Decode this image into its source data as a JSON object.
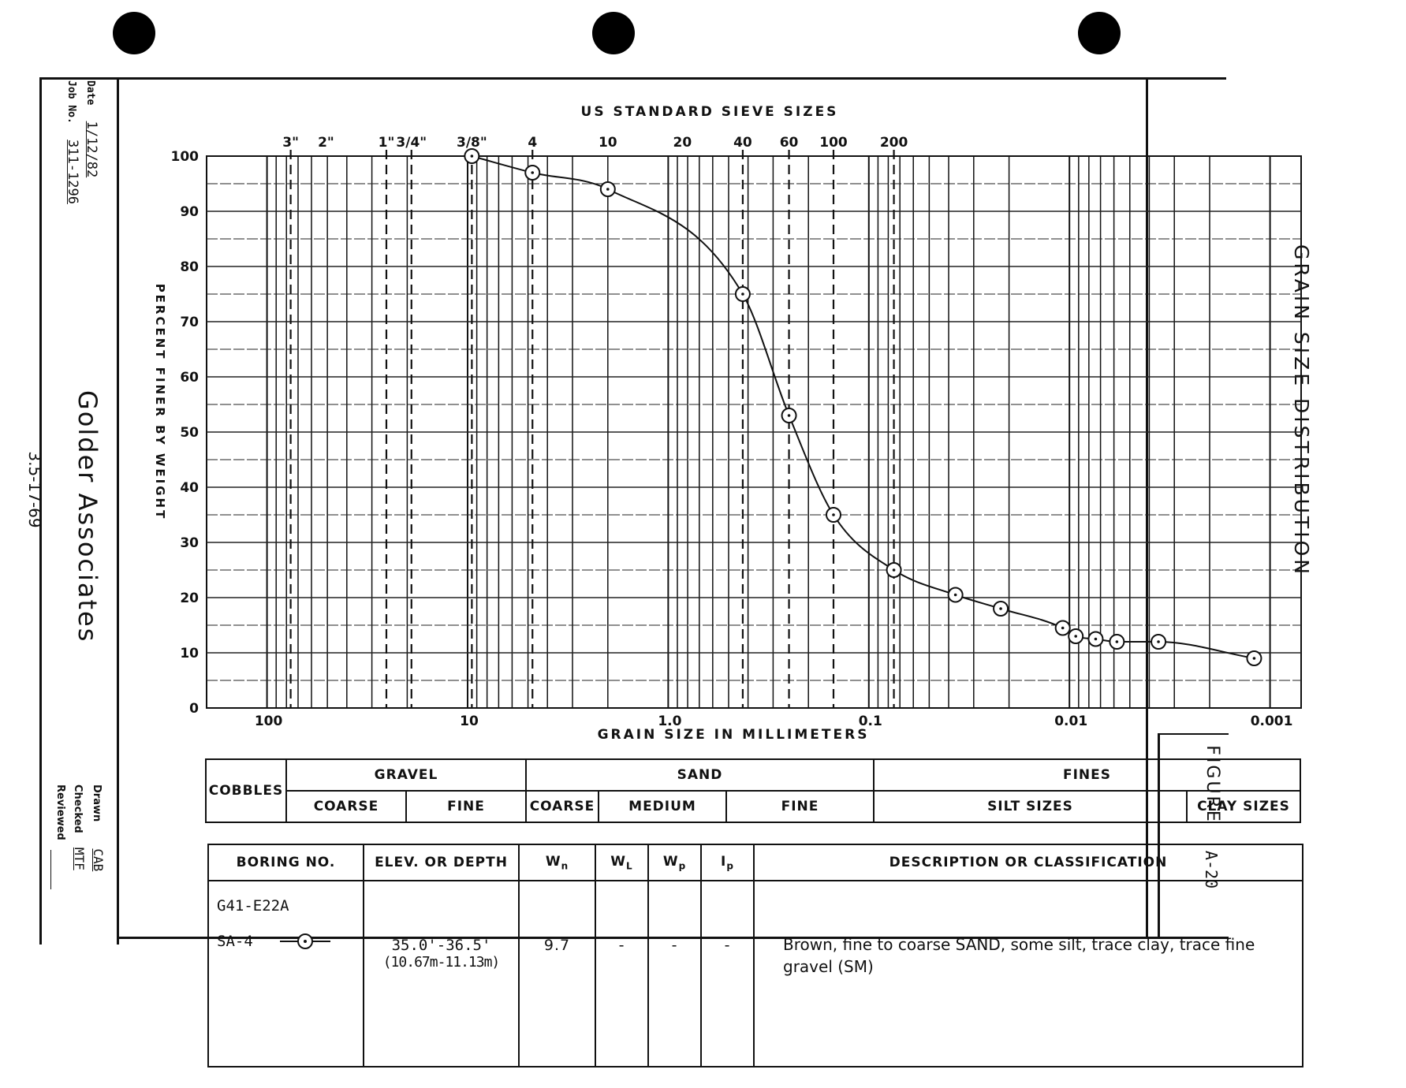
{
  "sheet": {
    "title": "GRAIN SIZE DISTRIBUTION",
    "figure_label": "FIGURE",
    "figure_number": "A-20",
    "page_ref": "3.5-17-69",
    "company": "Golder Associates",
    "date_label": "Date",
    "date_value": "1/12/82",
    "job_label": "Job No.",
    "job_value": "311-1296",
    "drawn_label": "Drawn",
    "drawn_value": "CAB",
    "checked_label": "Checked",
    "checked_value": "MTF",
    "reviewed_label": "Reviewed"
  },
  "classification": {
    "cobbles": "COBBLES",
    "gravel": "GRAVEL",
    "gravel_coarse": "COARSE",
    "gravel_fine": "FINE",
    "sand": "SAND",
    "sand_coarse": "COARSE",
    "sand_medium": "MEDIUM",
    "sand_fine": "FINE",
    "fines": "FINES",
    "silt": "SILT  SIZES",
    "clay": "CLAY SIZES"
  },
  "results": {
    "headers": {
      "boring": "BORING NO.",
      "elev": "ELEV. OR DEPTH",
      "wn": "W",
      "wn_sub": "n",
      "wl": "W",
      "wl_sub": "L",
      "wp": "W",
      "wp_sub": "p",
      "ip": "I",
      "ip_sub": "p",
      "desc": "DESCRIPTION   OR   CLASSIFICATION"
    },
    "row": {
      "boring_no": "G41-E22A",
      "sample": "SA-4",
      "elev_ft": "35.0'-36.5'",
      "elev_m": "(10.67m-11.13m)",
      "wn": "9.7",
      "wl": "-",
      "wp": "-",
      "ip": "-",
      "description": "Brown, fine to coarse SAND, some silt, trace clay, trace fine gravel  (SM)"
    }
  },
  "chart_data": {
    "type": "line",
    "title": "US STANDARD SIEVE SIZES",
    "xlabel": "GRAIN SIZE IN MILLIMETERS",
    "ylabel": "PERCENT FINER BY WEIGHT",
    "x_scale": "log",
    "x_reversed": true,
    "xlim": [
      200,
      0.0007
    ],
    "ylim": [
      0,
      100
    ],
    "x_tick_labels": [
      "100",
      "10",
      "1.0",
      "0.1",
      "0.01",
      "0.001"
    ],
    "x_ticks": [
      100,
      10,
      1,
      0.1,
      0.01,
      0.001
    ],
    "y_ticks": [
      0,
      10,
      20,
      30,
      40,
      50,
      60,
      70,
      80,
      90,
      100
    ],
    "sieves": [
      {
        "label": "3\"",
        "size": 76.2
      },
      {
        "label": "2\"",
        "size": 50.8
      },
      {
        "label": "1\"",
        "size": 25.4
      },
      {
        "label": "3/4\"",
        "size": 19.05
      },
      {
        "label": "3/8\"",
        "size": 9.525
      },
      {
        "label": "4",
        "size": 4.75
      },
      {
        "label": "10",
        "size": 2.0
      },
      {
        "label": "20",
        "size": 0.85
      },
      {
        "label": "40",
        "size": 0.425
      },
      {
        "label": "60",
        "size": 0.25
      },
      {
        "label": "100",
        "size": 0.15
      },
      {
        "label": "200",
        "size": 0.075
      }
    ],
    "dashed_sieves": [
      76.2,
      25.4,
      19.05,
      9.525,
      4.75,
      0.425,
      0.25,
      0.15,
      0.075
    ],
    "grid": true,
    "series": [
      {
        "name": "SA-4",
        "x": [
          9.525,
          4.75,
          2.0,
          0.425,
          0.25,
          0.15,
          0.075,
          0.037,
          0.022,
          0.0108,
          0.0093,
          0.0074,
          0.0058,
          0.0036,
          0.0012
        ],
        "y": [
          100,
          97,
          94,
          75,
          53,
          35,
          25,
          20.5,
          18,
          14.5,
          13,
          12.5,
          12,
          12,
          9
        ]
      }
    ]
  }
}
